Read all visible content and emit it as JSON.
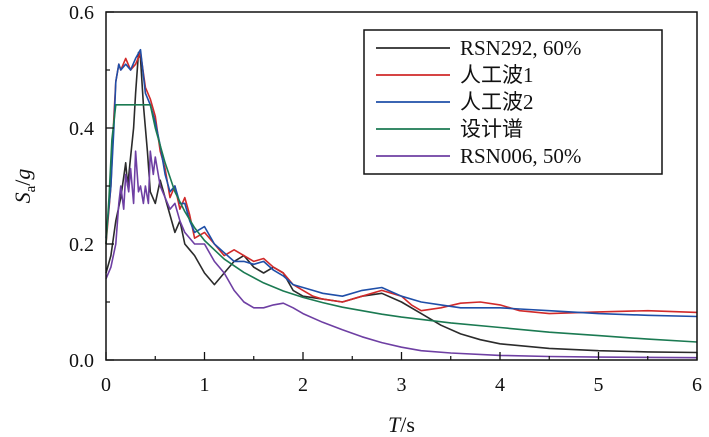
{
  "chart_data": {
    "type": "line",
    "xlabel": "T/s",
    "ylabel": "Sa/g",
    "xlim": [
      0,
      6
    ],
    "ylim": [
      0,
      0.6
    ],
    "xticks": [
      "0",
      "1",
      "2",
      "3",
      "4",
      "5",
      "6"
    ],
    "yticks": [
      "0.0",
      "0.2",
      "0.4",
      "0.6"
    ],
    "grid": false,
    "legend_position": "top-right",
    "series": [
      {
        "name": "RSN292, 60%",
        "color": "#2b2b2b",
        "points": [
          [
            0.0,
            0.15
          ],
          [
            0.05,
            0.18
          ],
          [
            0.1,
            0.24
          ],
          [
            0.15,
            0.28
          ],
          [
            0.2,
            0.34
          ],
          [
            0.22,
            0.3
          ],
          [
            0.25,
            0.35
          ],
          [
            0.28,
            0.4
          ],
          [
            0.3,
            0.46
          ],
          [
            0.33,
            0.53
          ],
          [
            0.35,
            0.52
          ],
          [
            0.38,
            0.44
          ],
          [
            0.42,
            0.36
          ],
          [
            0.45,
            0.29
          ],
          [
            0.5,
            0.27
          ],
          [
            0.55,
            0.31
          ],
          [
            0.6,
            0.28
          ],
          [
            0.65,
            0.25
          ],
          [
            0.7,
            0.22
          ],
          [
            0.75,
            0.24
          ],
          [
            0.8,
            0.2
          ],
          [
            0.85,
            0.19
          ],
          [
            0.9,
            0.18
          ],
          [
            1.0,
            0.15
          ],
          [
            1.1,
            0.13
          ],
          [
            1.2,
            0.15
          ],
          [
            1.3,
            0.17
          ],
          [
            1.4,
            0.18
          ],
          [
            1.5,
            0.16
          ],
          [
            1.6,
            0.15
          ],
          [
            1.7,
            0.16
          ],
          [
            1.75,
            0.155
          ],
          [
            1.8,
            0.15
          ],
          [
            1.9,
            0.12
          ],
          [
            2.0,
            0.11
          ],
          [
            2.2,
            0.105
          ],
          [
            2.4,
            0.1
          ],
          [
            2.6,
            0.11
          ],
          [
            2.8,
            0.115
          ],
          [
            3.0,
            0.1
          ],
          [
            3.2,
            0.08
          ],
          [
            3.4,
            0.06
          ],
          [
            3.6,
            0.045
          ],
          [
            3.8,
            0.035
          ],
          [
            4.0,
            0.028
          ],
          [
            4.5,
            0.02
          ],
          [
            5.0,
            0.016
          ],
          [
            5.5,
            0.014
          ],
          [
            6.0,
            0.013
          ]
        ]
      },
      {
        "name": "人工波1",
        "color": "#d12a2a",
        "points": [
          [
            0.0,
            0.2
          ],
          [
            0.05,
            0.3
          ],
          [
            0.08,
            0.42
          ],
          [
            0.1,
            0.48
          ],
          [
            0.13,
            0.51
          ],
          [
            0.15,
            0.5
          ],
          [
            0.2,
            0.52
          ],
          [
            0.25,
            0.5
          ],
          [
            0.3,
            0.51
          ],
          [
            0.35,
            0.53
          ],
          [
            0.4,
            0.47
          ],
          [
            0.45,
            0.45
          ],
          [
            0.5,
            0.42
          ],
          [
            0.55,
            0.36
          ],
          [
            0.6,
            0.33
          ],
          [
            0.65,
            0.28
          ],
          [
            0.7,
            0.3
          ],
          [
            0.75,
            0.26
          ],
          [
            0.8,
            0.28
          ],
          [
            0.85,
            0.25
          ],
          [
            0.9,
            0.21
          ],
          [
            1.0,
            0.22
          ],
          [
            1.1,
            0.2
          ],
          [
            1.2,
            0.18
          ],
          [
            1.3,
            0.19
          ],
          [
            1.4,
            0.18
          ],
          [
            1.5,
            0.17
          ],
          [
            1.6,
            0.175
          ],
          [
            1.7,
            0.16
          ],
          [
            1.8,
            0.15
          ],
          [
            1.9,
            0.13
          ],
          [
            2.0,
            0.12
          ],
          [
            2.1,
            0.11
          ],
          [
            2.2,
            0.105
          ],
          [
            2.4,
            0.1
          ],
          [
            2.6,
            0.11
          ],
          [
            2.8,
            0.12
          ],
          [
            3.0,
            0.11
          ],
          [
            3.1,
            0.095
          ],
          [
            3.2,
            0.085
          ],
          [
            3.4,
            0.09
          ],
          [
            3.6,
            0.098
          ],
          [
            3.8,
            0.1
          ],
          [
            4.0,
            0.095
          ],
          [
            4.2,
            0.085
          ],
          [
            4.5,
            0.08
          ],
          [
            5.0,
            0.083
          ],
          [
            5.5,
            0.085
          ],
          [
            6.0,
            0.082
          ]
        ]
      },
      {
        "name": "人工波2",
        "color": "#1f4fa8",
        "points": [
          [
            0.0,
            0.21
          ],
          [
            0.05,
            0.3
          ],
          [
            0.08,
            0.4
          ],
          [
            0.1,
            0.48
          ],
          [
            0.13,
            0.51
          ],
          [
            0.15,
            0.5
          ],
          [
            0.2,
            0.51
          ],
          [
            0.25,
            0.5
          ],
          [
            0.3,
            0.52
          ],
          [
            0.35,
            0.535
          ],
          [
            0.4,
            0.46
          ],
          [
            0.45,
            0.44
          ],
          [
            0.5,
            0.41
          ],
          [
            0.55,
            0.37
          ],
          [
            0.6,
            0.32
          ],
          [
            0.65,
            0.29
          ],
          [
            0.7,
            0.3
          ],
          [
            0.75,
            0.27
          ],
          [
            0.8,
            0.27
          ],
          [
            0.85,
            0.24
          ],
          [
            0.9,
            0.22
          ],
          [
            1.0,
            0.23
          ],
          [
            1.1,
            0.2
          ],
          [
            1.2,
            0.185
          ],
          [
            1.3,
            0.17
          ],
          [
            1.4,
            0.17
          ],
          [
            1.5,
            0.165
          ],
          [
            1.6,
            0.17
          ],
          [
            1.7,
            0.155
          ],
          [
            1.8,
            0.145
          ],
          [
            1.9,
            0.13
          ],
          [
            2.0,
            0.125
          ],
          [
            2.1,
            0.12
          ],
          [
            2.2,
            0.115
          ],
          [
            2.4,
            0.11
          ],
          [
            2.6,
            0.12
          ],
          [
            2.8,
            0.125
          ],
          [
            3.0,
            0.11
          ],
          [
            3.2,
            0.1
          ],
          [
            3.4,
            0.095
          ],
          [
            3.6,
            0.09
          ],
          [
            3.8,
            0.09
          ],
          [
            4.0,
            0.09
          ],
          [
            4.2,
            0.088
          ],
          [
            4.5,
            0.085
          ],
          [
            5.0,
            0.08
          ],
          [
            5.5,
            0.077
          ],
          [
            6.0,
            0.075
          ]
        ]
      },
      {
        "name": "设计谱",
        "color": "#1b7a52",
        "points": [
          [
            0.0,
            0.2
          ],
          [
            0.03,
            0.28
          ],
          [
            0.06,
            0.38
          ],
          [
            0.1,
            0.44
          ],
          [
            0.45,
            0.44
          ],
          [
            0.5,
            0.4
          ],
          [
            0.6,
            0.34
          ],
          [
            0.7,
            0.29
          ],
          [
            0.8,
            0.256
          ],
          [
            0.9,
            0.228
          ],
          [
            1.0,
            0.206
          ],
          [
            1.2,
            0.174
          ],
          [
            1.4,
            0.151
          ],
          [
            1.6,
            0.133
          ],
          [
            1.8,
            0.119
          ],
          [
            2.0,
            0.108
          ],
          [
            2.2,
            0.099
          ],
          [
            2.4,
            0.091
          ],
          [
            2.6,
            0.085
          ],
          [
            2.8,
            0.079
          ],
          [
            3.0,
            0.074
          ],
          [
            3.5,
            0.064
          ],
          [
            4.0,
            0.056
          ],
          [
            4.5,
            0.048
          ],
          [
            5.0,
            0.042
          ],
          [
            5.5,
            0.036
          ],
          [
            6.0,
            0.031
          ]
        ]
      },
      {
        "name": "RSN006, 50%",
        "color": "#6e3fa3",
        "points": [
          [
            0.0,
            0.14
          ],
          [
            0.05,
            0.16
          ],
          [
            0.1,
            0.2
          ],
          [
            0.13,
            0.27
          ],
          [
            0.15,
            0.3
          ],
          [
            0.18,
            0.26
          ],
          [
            0.2,
            0.32
          ],
          [
            0.23,
            0.29
          ],
          [
            0.25,
            0.33
          ],
          [
            0.28,
            0.27
          ],
          [
            0.3,
            0.36
          ],
          [
            0.33,
            0.29
          ],
          [
            0.35,
            0.3
          ],
          [
            0.38,
            0.27
          ],
          [
            0.4,
            0.3
          ],
          [
            0.43,
            0.27
          ],
          [
            0.45,
            0.36
          ],
          [
            0.48,
            0.32
          ],
          [
            0.5,
            0.35
          ],
          [
            0.55,
            0.3
          ],
          [
            0.6,
            0.28
          ],
          [
            0.65,
            0.26
          ],
          [
            0.7,
            0.27
          ],
          [
            0.75,
            0.24
          ],
          [
            0.8,
            0.22
          ],
          [
            0.9,
            0.2
          ],
          [
            1.0,
            0.2
          ],
          [
            1.1,
            0.17
          ],
          [
            1.2,
            0.15
          ],
          [
            1.3,
            0.12
          ],
          [
            1.4,
            0.1
          ],
          [
            1.5,
            0.09
          ],
          [
            1.6,
            0.09
          ],
          [
            1.7,
            0.095
          ],
          [
            1.8,
            0.098
          ],
          [
            1.9,
            0.09
          ],
          [
            2.0,
            0.08
          ],
          [
            2.2,
            0.065
          ],
          [
            2.4,
            0.052
          ],
          [
            2.6,
            0.04
          ],
          [
            2.8,
            0.03
          ],
          [
            3.0,
            0.022
          ],
          [
            3.2,
            0.016
          ],
          [
            3.5,
            0.012
          ],
          [
            4.0,
            0.008
          ],
          [
            4.5,
            0.006
          ],
          [
            5.0,
            0.005
          ],
          [
            6.0,
            0.004
          ]
        ]
      }
    ]
  }
}
